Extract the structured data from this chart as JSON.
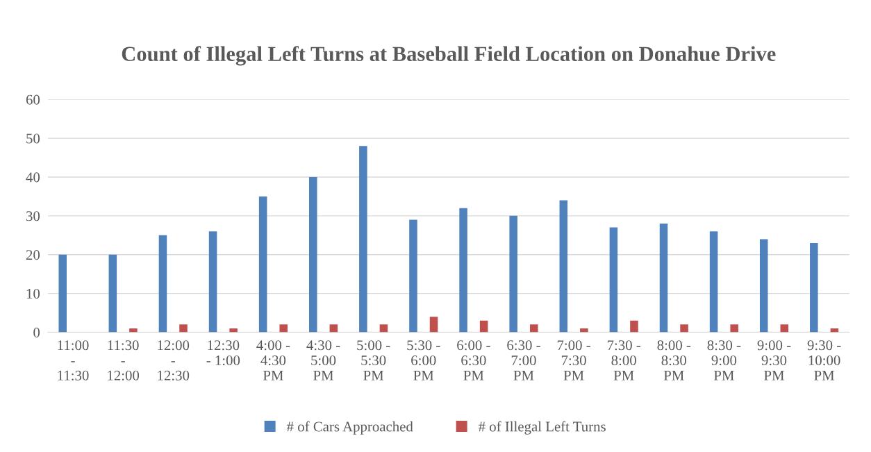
{
  "chart_data": {
    "type": "bar",
    "title": "Count of Illegal Left Turns at Baseball Field Location on Donahue Drive",
    "categories": [
      "11:00\n-\n11:30",
      "11:30\n-\n12:00",
      "12:00\n-\n12:30",
      "12:30\n- 1:00",
      "4:00 -\n4:30\nPM",
      "4:30 -\n5:00\nPM",
      "5:00 -\n5:30\nPM",
      "5:30 -\n6:00\nPM",
      "6:00 -\n6:30\nPM",
      "6:30 -\n7:00\nPM",
      "7:00 -\n7:30\nPM",
      "7:30 -\n8:00\nPM",
      "8:00 -\n8:30\nPM",
      "8:30 -\n9:00\nPM",
      "9:00 -\n9:30\nPM",
      "9:30 -\n10:00\nPM"
    ],
    "series": [
      {
        "name": "# of Cars Approached",
        "color": "#4f81bd",
        "values": [
          20,
          20,
          25,
          26,
          35,
          40,
          48,
          29,
          32,
          30,
          34,
          27,
          28,
          26,
          24,
          23
        ]
      },
      {
        "name": "# of Illegal Left Turns",
        "color": "#c0504d",
        "values": [
          0,
          1,
          2,
          1,
          2,
          2,
          2,
          4,
          3,
          2,
          1,
          3,
          2,
          2,
          2,
          1
        ]
      }
    ],
    "ylim": [
      0,
      60
    ],
    "yticks": [
      0,
      10,
      20,
      30,
      40,
      50,
      60
    ],
    "grid": "y",
    "legend": "bottom"
  }
}
